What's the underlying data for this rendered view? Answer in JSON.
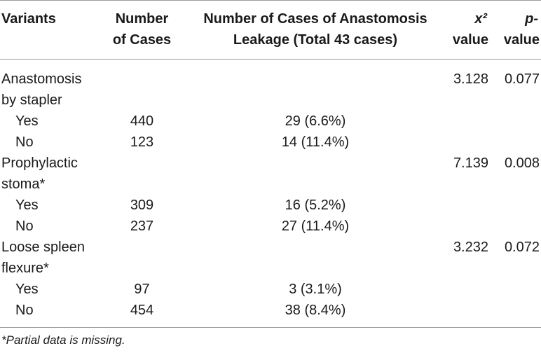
{
  "header": {
    "variants": "Variants",
    "cases_line1": "Number",
    "cases_line2": "of Cases",
    "leak_line1": "Number of Cases of Anastomosis",
    "leak_line2": "Leakage (Total 43 cases)",
    "chi_line1": "x²",
    "chi_line2": "value",
    "p_line1": "p-",
    "p_line2": "value"
  },
  "groups": [
    {
      "label_line1": "Anastomosis",
      "label_line2": "by stapler",
      "chi": "3.128",
      "p": "0.077",
      "rows": [
        {
          "label": "Yes",
          "cases": "440",
          "leak": "29 (6.6%)"
        },
        {
          "label": "No",
          "cases": "123",
          "leak": "14 (11.4%)"
        }
      ]
    },
    {
      "label_line1": "Prophylactic",
      "label_line2": "stoma*",
      "chi": "7.139",
      "p": "0.008",
      "rows": [
        {
          "label": "Yes",
          "cases": "309",
          "leak": "16 (5.2%)"
        },
        {
          "label": "No",
          "cases": "237",
          "leak": "27 (11.4%)"
        }
      ]
    },
    {
      "label_line1": "Loose spleen",
      "label_line2": "flexure*",
      "chi": "3.232",
      "p": "0.072",
      "rows": [
        {
          "label": "Yes",
          "cases": "97",
          "leak": "3 (3.1%)"
        },
        {
          "label": "No",
          "cases": "454",
          "leak": "38 (8.4%)"
        }
      ]
    }
  ],
  "footnote": "*Partial data is missing."
}
